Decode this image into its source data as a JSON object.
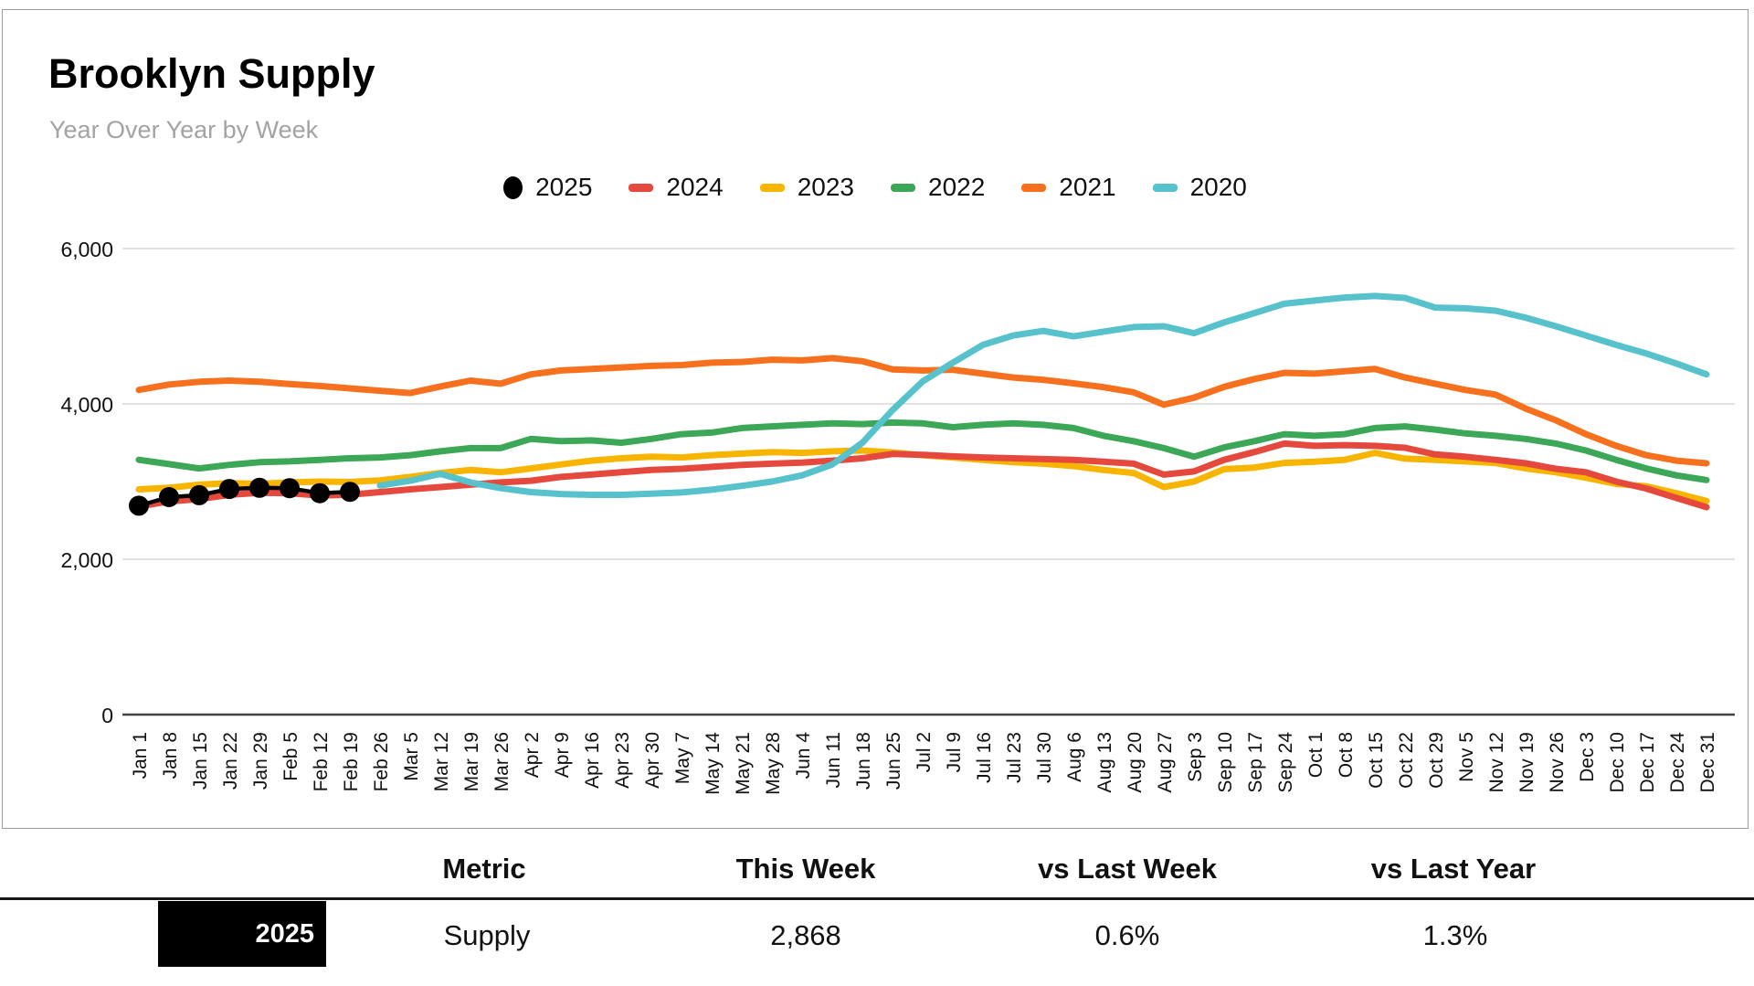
{
  "chart": {
    "title": "Brooklyn Supply",
    "subtitle": "Year Over Year by Week"
  },
  "chart_data": {
    "type": "line",
    "title": "Brooklyn Supply",
    "subtitle": "Year Over Year by Week",
    "legend_position": "top",
    "grid": "horizontal",
    "ylim": [
      0,
      6500
    ],
    "y_gridlines": [
      6000,
      4000,
      2000,
      0
    ],
    "x_labels": [
      "Jan 1",
      "Jan 8",
      "Jan 15",
      "Jan 22",
      "Jan 29",
      "Feb 5",
      "Feb 12",
      "Feb 19",
      "Feb 26",
      "Mar 5",
      "Mar 12",
      "Mar 19",
      "Mar 26",
      "Apr 2",
      "Apr 9",
      "Apr 16",
      "Apr 23",
      "Apr 30",
      "May 7",
      "May 14",
      "May 21",
      "May 28",
      "Jun 4",
      "Jun 11",
      "Jun 18",
      "Jun 25",
      "Jul 2",
      "Jul 9",
      "Jul 16",
      "Jul 23",
      "Jul 30",
      "Aug 6",
      "Aug 13",
      "Aug 20",
      "Aug 27",
      "Sep 3",
      "Sep 10",
      "Sep 17",
      "Sep 24",
      "Oct 1",
      "Oct 8",
      "Oct 15",
      "Oct 22",
      "Oct 29",
      "Nov 5",
      "Nov 12",
      "Nov 19",
      "Nov 26",
      "Dec 3",
      "Dec 10",
      "Dec 17",
      "Dec 24",
      "Dec 31"
    ],
    "series": [
      {
        "name": "2025",
        "color": "#000000",
        "marker": "circle",
        "start_index": 0,
        "values": [
          2690,
          2800,
          2825,
          2905,
          2920,
          2915,
          2851,
          2868
        ]
      },
      {
        "name": "2024",
        "color": "#E5493D",
        "marker": "dash",
        "start_index": 0,
        "values": [
          2680,
          2745,
          2775,
          2830,
          2855,
          2850,
          2820,
          2831,
          2865,
          2900,
          2930,
          2960,
          2990,
          3010,
          3060,
          3090,
          3120,
          3150,
          3165,
          3190,
          3215,
          3230,
          3245,
          3270,
          3300,
          3355,
          3345,
          3325,
          3310,
          3300,
          3290,
          3280,
          3255,
          3230,
          3090,
          3130,
          3280,
          3380,
          3490,
          3460,
          3470,
          3460,
          3435,
          3350,
          3320,
          3280,
          3235,
          3165,
          3120,
          3000,
          2910,
          2790,
          2670
        ]
      },
      {
        "name": "2023",
        "color": "#F7B500",
        "marker": "dash",
        "start_index": 0,
        "values": [
          2900,
          2920,
          2960,
          2980,
          2970,
          2990,
          3000,
          2995,
          3015,
          3060,
          3110,
          3150,
          3120,
          3170,
          3220,
          3270,
          3300,
          3320,
          3310,
          3340,
          3360,
          3380,
          3370,
          3390,
          3400,
          3375,
          3340,
          3310,
          3280,
          3250,
          3230,
          3200,
          3150,
          3110,
          2930,
          3000,
          3160,
          3180,
          3240,
          3255,
          3280,
          3370,
          3295,
          3280,
          3260,
          3240,
          3170,
          3120,
          3050,
          2970,
          2940,
          2850,
          2750
        ]
      },
      {
        "name": "2022",
        "color": "#3CA756",
        "marker": "dash",
        "start_index": 0,
        "values": [
          3280,
          3225,
          3170,
          3215,
          3250,
          3260,
          3280,
          3300,
          3310,
          3340,
          3390,
          3430,
          3430,
          3550,
          3520,
          3530,
          3500,
          3550,
          3610,
          3630,
          3690,
          3710,
          3730,
          3750,
          3740,
          3760,
          3750,
          3700,
          3730,
          3750,
          3730,
          3690,
          3590,
          3520,
          3430,
          3320,
          3440,
          3520,
          3610,
          3590,
          3610,
          3690,
          3710,
          3670,
          3620,
          3590,
          3550,
          3490,
          3400,
          3280,
          3170,
          3080,
          3020
        ]
      },
      {
        "name": "2021",
        "color": "#F6701E",
        "marker": "dash",
        "start_index": 0,
        "values": [
          4180,
          4250,
          4285,
          4300,
          4285,
          4255,
          4230,
          4200,
          4170,
          4140,
          4225,
          4300,
          4260,
          4380,
          4430,
          4450,
          4470,
          4490,
          4500,
          4530,
          4540,
          4570,
          4560,
          4590,
          4550,
          4445,
          4430,
          4440,
          4390,
          4340,
          4310,
          4265,
          4215,
          4150,
          3990,
          4080,
          4220,
          4320,
          4400,
          4390,
          4420,
          4450,
          4340,
          4260,
          4180,
          4120,
          3940,
          3790,
          3610,
          3460,
          3340,
          3270,
          3235
        ]
      },
      {
        "name": "2020",
        "color": "#57C1CC",
        "marker": "dash",
        "start_index": 8,
        "values": [
          2950,
          3010,
          3100,
          2990,
          2915,
          2865,
          2840,
          2830,
          2830,
          2845,
          2860,
          2895,
          2945,
          3000,
          3080,
          3220,
          3500,
          3920,
          4290,
          4530,
          4760,
          4880,
          4940,
          4870,
          4930,
          4990,
          5000,
          4910,
          5050,
          5170,
          5290,
          5330,
          5370,
          5390,
          5365,
          5240,
          5230,
          5200,
          5110,
          5000,
          4880,
          4760,
          4650,
          4520,
          4380
        ]
      }
    ]
  },
  "table": {
    "headers": [
      "Metric",
      "This Week",
      "vs Last Week",
      "vs Last Year"
    ],
    "row": {
      "year": "2025",
      "metric": "Supply",
      "this_week": "2,868",
      "vs_last_week": "0.6%",
      "vs_last_year": "1.3%"
    }
  }
}
